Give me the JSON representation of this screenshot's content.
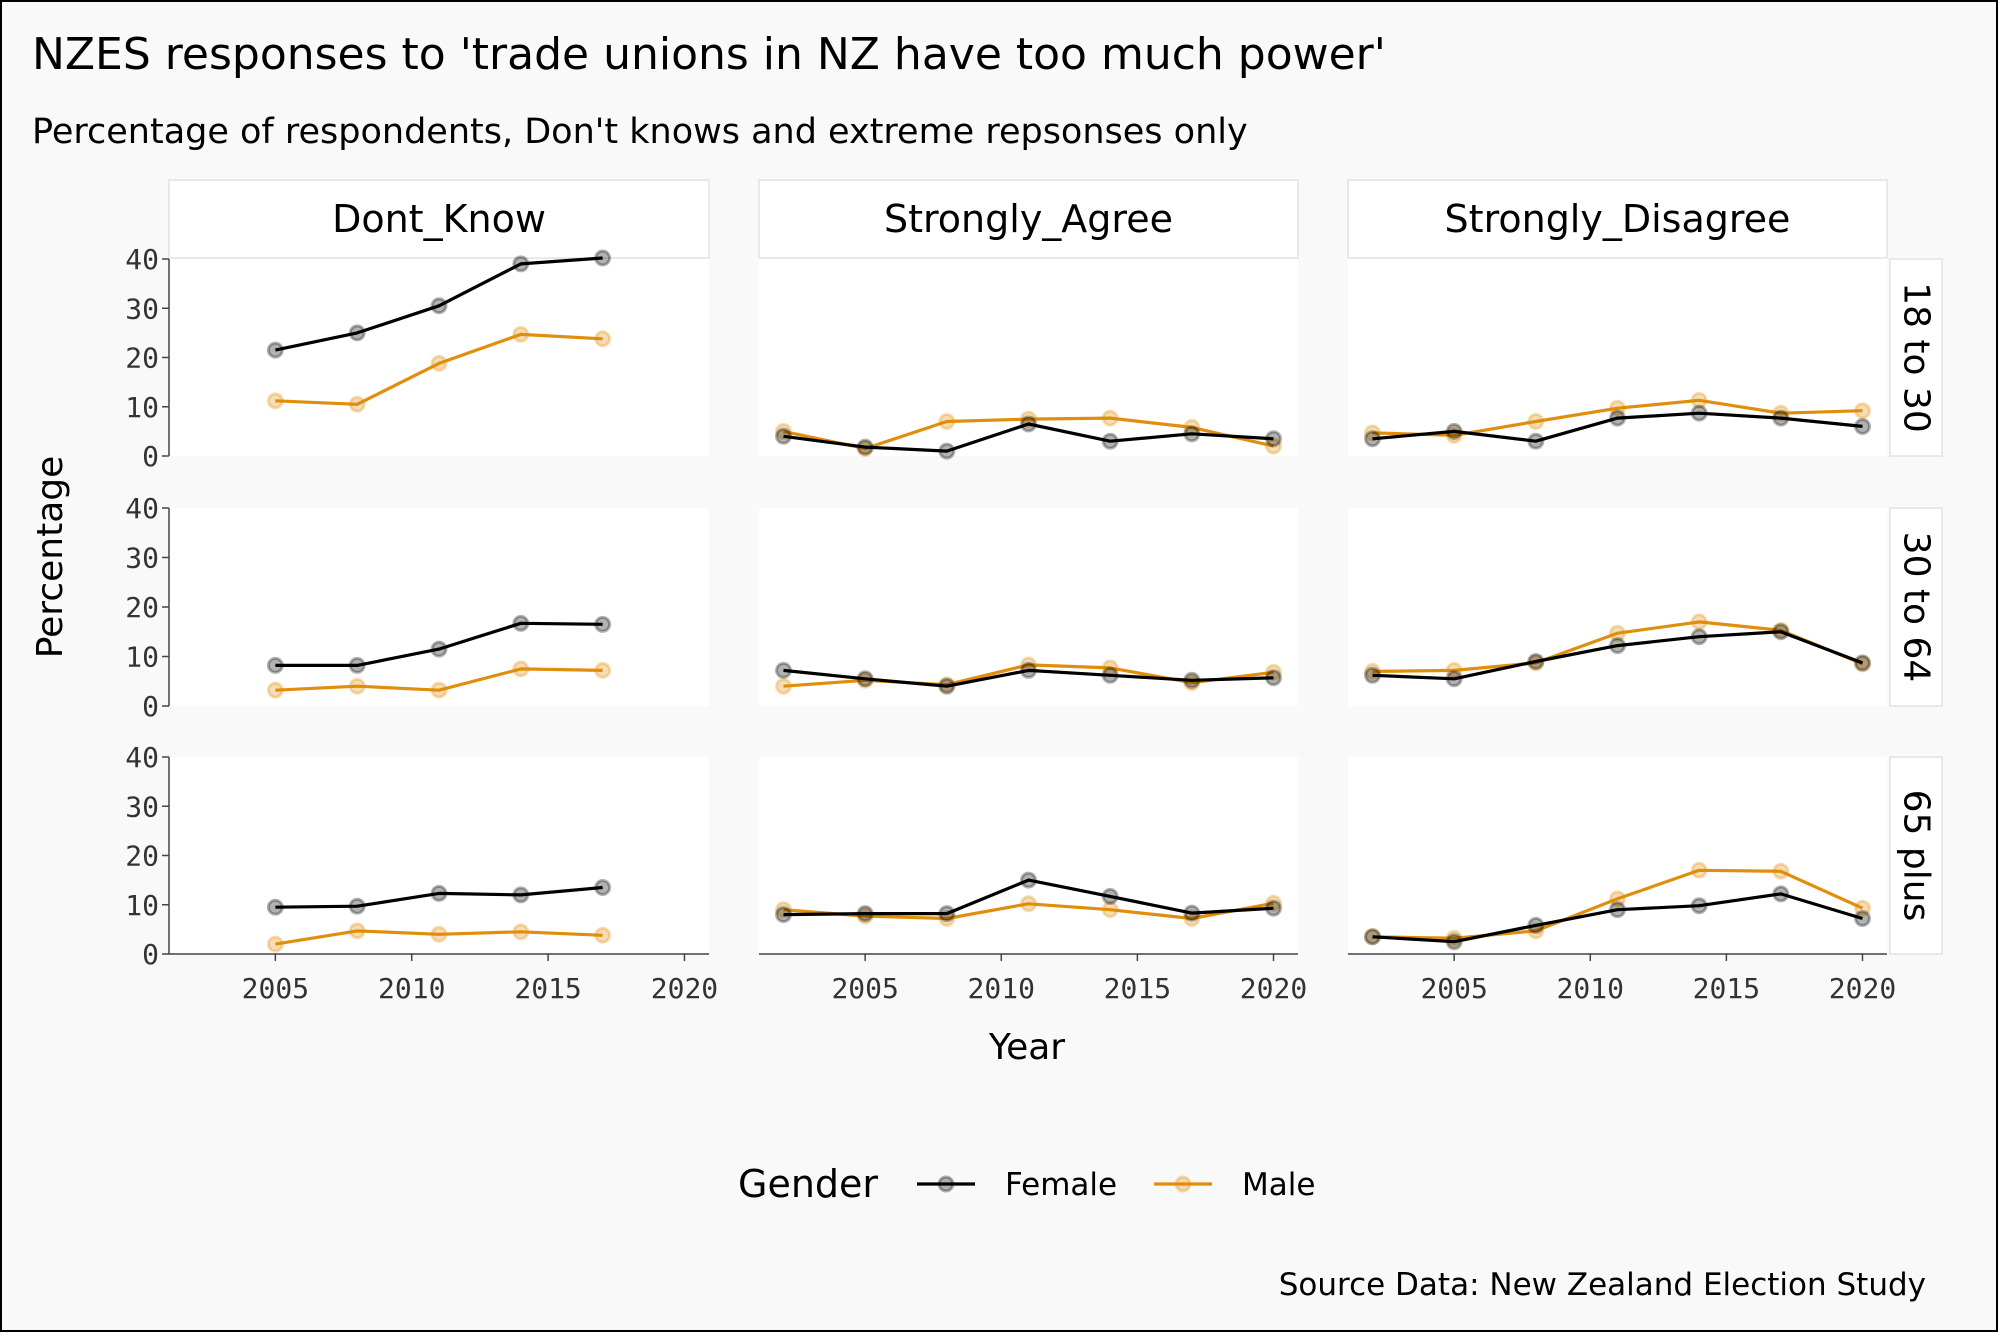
{
  "chart_data": {
    "type": "line",
    "title": "NZES responses to 'trade unions in NZ have too much power'",
    "subtitle": "Percentage of respondents, Don't knows and extreme repsonses only",
    "xlabel": "Year",
    "ylabel": "Percentage",
    "caption": "Source Data: New Zealand Election Study",
    "xlim": [
      2001.1,
      2020.9
    ],
    "ylim": [
      0,
      40
    ],
    "x_ticks": [
      2005,
      2010,
      2015,
      2020
    ],
    "y_ticks": [
      0,
      10,
      20,
      30,
      40
    ],
    "grid": false,
    "legend": {
      "title": "Gender",
      "position": "bottom",
      "entries": [
        {
          "name": "Female",
          "color": "#000000"
        },
        {
          "name": "Male",
          "color": "#e08e0b"
        }
      ]
    },
    "columns": [
      "Dont_Know",
      "Strongly_Agree",
      "Strongly_Disagree"
    ],
    "rows": [
      "18 to 30",
      "30 to 64",
      "65 plus"
    ],
    "panels": [
      {
        "column": "Dont_Know",
        "row": "18 to 30",
        "series": [
          {
            "name": "Female",
            "x": [
              2005,
              2008,
              2011,
              2014,
              2017
            ],
            "y": [
              21.5,
              25,
              30.5,
              39,
              40.2
            ]
          },
          {
            "name": "Male",
            "x": [
              2005,
              2008,
              2011,
              2014,
              2017
            ],
            "y": [
              11.2,
              10.5,
              18.8,
              24.7,
              23.8
            ]
          }
        ]
      },
      {
        "column": "Strongly_Agree",
        "row": "18 to 30",
        "series": [
          {
            "name": "Female",
            "x": [
              2002,
              2005,
              2008,
              2011,
              2014,
              2017,
              2020
            ],
            "y": [
              4,
              1.8,
              1,
              6.5,
              3,
              4.5,
              3.5
            ]
          },
          {
            "name": "Male",
            "x": [
              2002,
              2005,
              2008,
              2011,
              2014,
              2017,
              2020
            ],
            "y": [
              5,
              1.5,
              7,
              7.5,
              7.7,
              5.8,
              2
            ]
          }
        ]
      },
      {
        "column": "Strongly_Disagree",
        "row": "18 to 30",
        "series": [
          {
            "name": "Female",
            "x": [
              2002,
              2005,
              2008,
              2011,
              2014,
              2017,
              2020
            ],
            "y": [
              3.5,
              5,
              3,
              7.7,
              8.7,
              7.7,
              6
            ]
          },
          {
            "name": "Male",
            "x": [
              2002,
              2005,
              2008,
              2011,
              2014,
              2017,
              2020
            ],
            "y": [
              4.7,
              4.2,
              7,
              9.7,
              11.3,
              8.7,
              9.2
            ]
          }
        ]
      },
      {
        "column": "Dont_Know",
        "row": "30 to 64",
        "series": [
          {
            "name": "Female",
            "x": [
              2005,
              2008,
              2011,
              2014,
              2017
            ],
            "y": [
              8.2,
              8.2,
              11.5,
              16.7,
              16.5
            ]
          },
          {
            "name": "Male",
            "x": [
              2005,
              2008,
              2011,
              2014,
              2017
            ],
            "y": [
              3.2,
              4,
              3.2,
              7.5,
              7.2
            ]
          }
        ]
      },
      {
        "column": "Strongly_Agree",
        "row": "30 to 64",
        "series": [
          {
            "name": "Female",
            "x": [
              2002,
              2005,
              2008,
              2011,
              2014,
              2017,
              2020
            ],
            "y": [
              7.2,
              5.5,
              4,
              7.2,
              6.2,
              5.2,
              5.7
            ]
          },
          {
            "name": "Male",
            "x": [
              2002,
              2005,
              2008,
              2011,
              2014,
              2017,
              2020
            ],
            "y": [
              4,
              5.2,
              4.3,
              8.3,
              7.7,
              4.7,
              6.8
            ]
          }
        ]
      },
      {
        "column": "Strongly_Disagree",
        "row": "30 to 64",
        "series": [
          {
            "name": "Female",
            "x": [
              2002,
              2005,
              2008,
              2011,
              2014,
              2017,
              2020
            ],
            "y": [
              6.2,
              5.5,
              9,
              12.2,
              14,
              15,
              8.7
            ]
          },
          {
            "name": "Male",
            "x": [
              2002,
              2005,
              2008,
              2011,
              2014,
              2017,
              2020
            ],
            "y": [
              7,
              7.2,
              8.7,
              14.7,
              17,
              15.3,
              8.5
            ]
          }
        ]
      },
      {
        "column": "Dont_Know",
        "row": "65 plus",
        "series": [
          {
            "name": "Female",
            "x": [
              2005,
              2008,
              2011,
              2014,
              2017
            ],
            "y": [
              9.5,
              9.7,
              12.3,
              12,
              13.5
            ]
          },
          {
            "name": "Male",
            "x": [
              2005,
              2008,
              2011,
              2014,
              2017
            ],
            "y": [
              2,
              4.7,
              4,
              4.5,
              3.8
            ]
          }
        ]
      },
      {
        "column": "Strongly_Agree",
        "row": "65 plus",
        "series": [
          {
            "name": "Female",
            "x": [
              2002,
              2005,
              2008,
              2011,
              2014,
              2017,
              2020
            ],
            "y": [
              8,
              8.2,
              8.2,
              15,
              11.7,
              8.3,
              9.3
            ]
          },
          {
            "name": "Male",
            "x": [
              2002,
              2005,
              2008,
              2011,
              2014,
              2017,
              2020
            ],
            "y": [
              9,
              7.7,
              7.2,
              10.2,
              9,
              7.2,
              10.3
            ]
          }
        ]
      },
      {
        "column": "Strongly_Disagree",
        "row": "65 plus",
        "series": [
          {
            "name": "Female",
            "x": [
              2002,
              2005,
              2008,
              2011,
              2014,
              2017,
              2020
            ],
            "y": [
              3.5,
              2.5,
              5.8,
              9,
              9.8,
              12.2,
              7.2
            ]
          },
          {
            "name": "Male",
            "x": [
              2002,
              2005,
              2008,
              2011,
              2014,
              2017,
              2020
            ],
            "y": [
              3.5,
              3.2,
              4.7,
              11.2,
              17,
              16.8,
              9.3
            ]
          }
        ]
      }
    ]
  }
}
